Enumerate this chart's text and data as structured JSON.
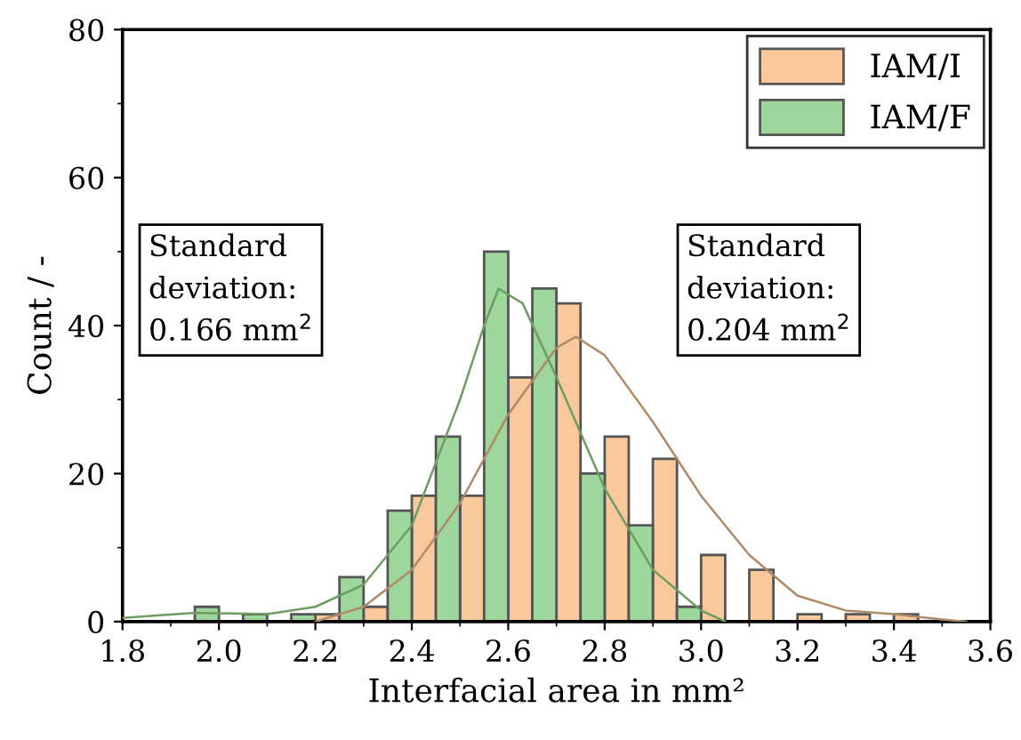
{
  "chart_data": {
    "type": "histogram",
    "xlabel": "Interfacial area in mm²",
    "ylabel": "Count / -",
    "bins": [
      1.95,
      2.0,
      2.05,
      2.1,
      2.15,
      2.2,
      2.25,
      2.3,
      2.35,
      2.4,
      2.45,
      2.5,
      2.55,
      2.6,
      2.65,
      2.7,
      2.75,
      2.8,
      2.85,
      2.9,
      2.95,
      3.0,
      3.05,
      3.1,
      3.15,
      3.2,
      3.25,
      3.3,
      3.35,
      3.4,
      3.45
    ],
    "series": [
      {
        "name": "IAM/I",
        "color": "#f9c89b",
        "values": [
          null,
          null,
          null,
          null,
          null,
          1,
          null,
          2,
          null,
          17,
          null,
          17,
          null,
          33,
          null,
          43,
          null,
          25,
          null,
          22,
          null,
          9,
          null,
          7,
          null,
          1,
          null,
          1,
          null,
          1
        ]
      },
      {
        "name": "IAM/F",
        "color": "#9ed79c",
        "values": [
          2,
          null,
          1,
          null,
          1,
          null,
          6,
          null,
          15,
          null,
          25,
          null,
          50,
          null,
          45,
          null,
          20,
          null,
          13,
          null,
          2,
          null,
          null,
          null,
          null,
          null,
          null,
          null,
          null,
          null
        ]
      },
      {
        "type": "line",
        "color": "#b08a68",
        "x": [
          2.2,
          2.3,
          2.4,
          2.5,
          2.6,
          2.7,
          2.74,
          2.8,
          2.9,
          3.0,
          3.1,
          3.2,
          3.3,
          3.4,
          3.5,
          3.55
        ],
        "values": [
          0,
          2,
          7,
          16,
          28,
          37,
          38.5,
          36,
          27,
          17,
          9,
          3.5,
          1.5,
          1,
          0.3,
          0
        ]
      },
      {
        "type": "line",
        "color": "#6e9c62",
        "x": [
          1.8,
          1.95,
          2.1,
          2.2,
          2.3,
          2.4,
          2.5,
          2.55,
          2.58,
          2.63,
          2.7,
          2.8,
          2.9,
          3.0,
          3.05
        ],
        "values": [
          0.5,
          1.2,
          1,
          2,
          5,
          13,
          30,
          40,
          45,
          43,
          33,
          18,
          7,
          1.5,
          0
        ]
      }
    ],
    "xlim": [
      1.8,
      3.6
    ],
    "xticks": [
      {
        "value": 1.8,
        "label": "1.8"
      },
      {
        "value": 2.0,
        "label": "2.0"
      },
      {
        "value": 2.2,
        "label": "2.2"
      },
      {
        "value": 2.4,
        "label": "2.4"
      },
      {
        "value": 2.6,
        "label": "2.6"
      },
      {
        "value": 2.8,
        "label": "2.8"
      },
      {
        "value": 3.0,
        "label": "3.0"
      },
      {
        "value": 3.2,
        "label": "3.2"
      },
      {
        "value": 3.4,
        "label": "3.4"
      },
      {
        "value": 3.6,
        "label": "3.6"
      }
    ],
    "ylim": [
      0,
      80
    ],
    "yticks": [
      0,
      20,
      40,
      60,
      80
    ],
    "annotations": [
      "Standard\ndeviation:\n0.166 mm$^{2}$",
      "Standard\ndeviation:\n0.204 mm$^{2}$"
    ],
    "legend": "top right",
    "grid": false
  }
}
